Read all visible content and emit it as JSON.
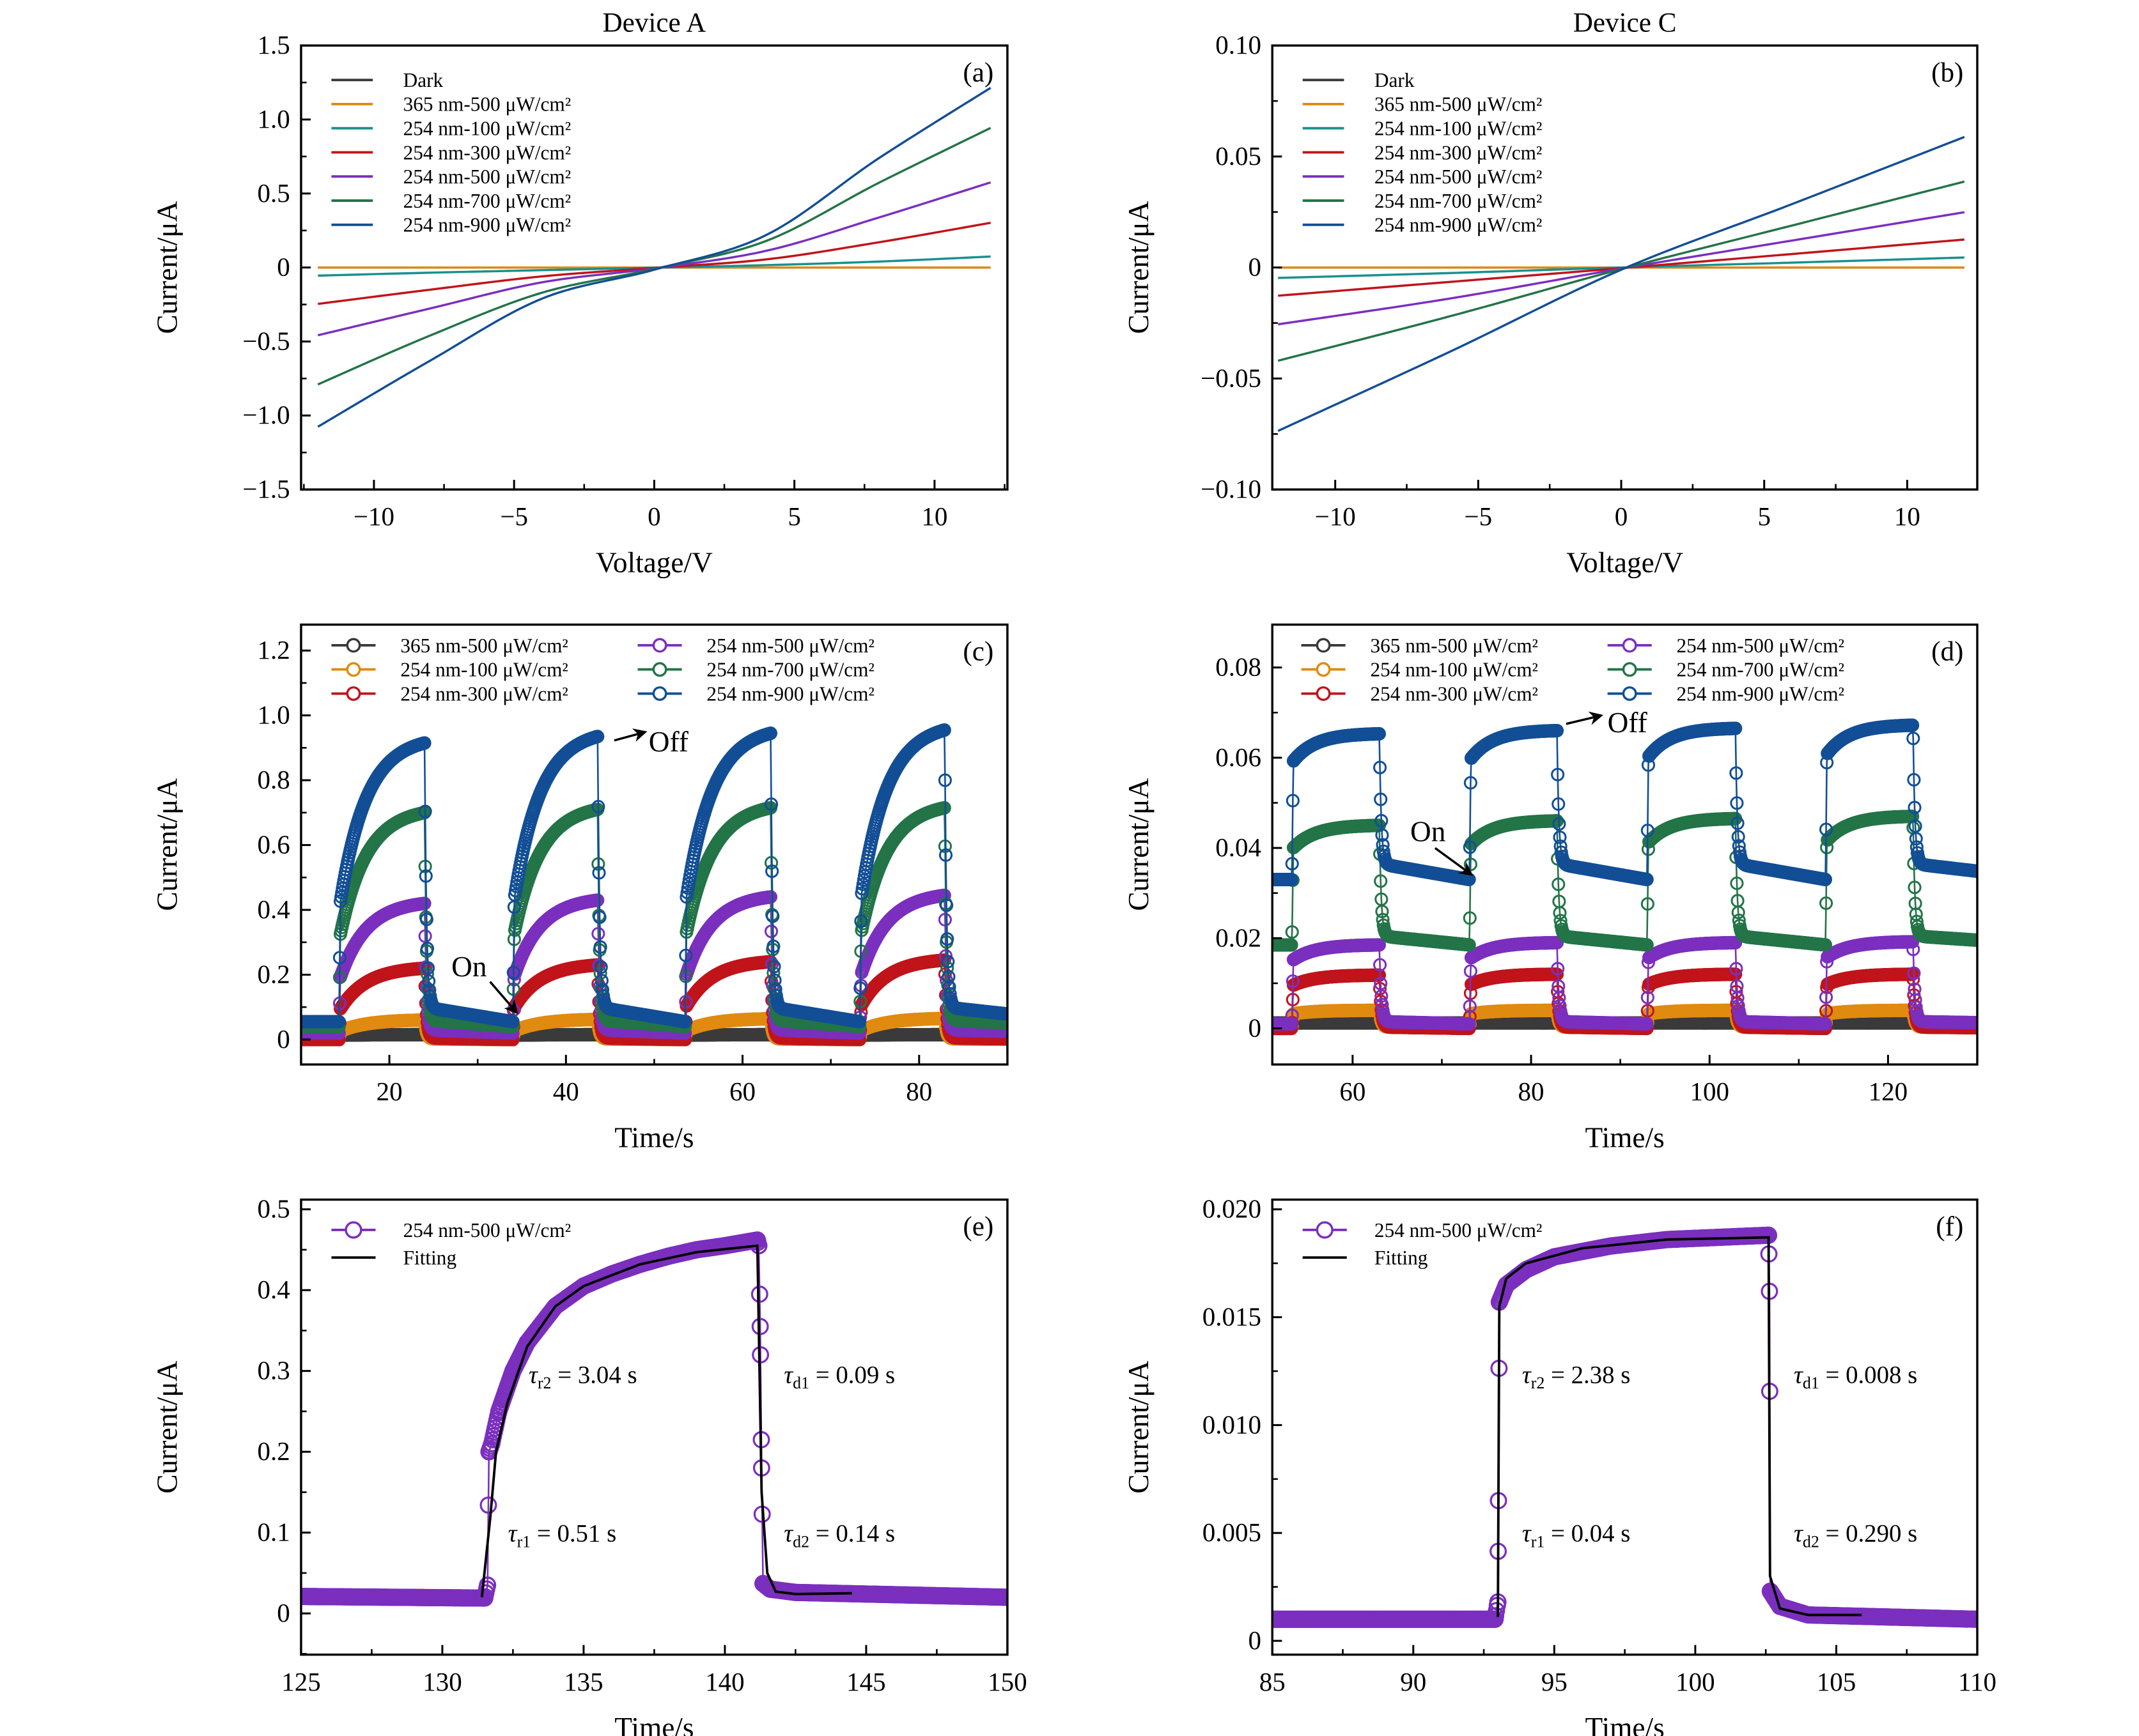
{
  "chart_data": [
    {
      "panel": "(a)",
      "title": "Device A",
      "type": "line",
      "xlabel": "Voltage/V",
      "ylabel": "Current/μA",
      "xlim": [
        -12.6,
        12.6
      ],
      "ylim": [
        -1.5,
        1.5
      ],
      "xticks": [
        -10,
        -5,
        0,
        5,
        10
      ],
      "xticklabels": [
        "−10",
        "−5",
        "0",
        "5",
        "10"
      ],
      "yticks": [
        -1.5,
        -1.0,
        -0.5,
        0,
        0.5,
        1.0,
        1.5
      ],
      "yticklabels": [
        "−1.5",
        "−1.0",
        "−0.5",
        "0",
        "0.5",
        "1.0",
        "1.5"
      ],
      "legend": "top-left",
      "grid": false,
      "x": [
        -12,
        -8,
        -4,
        0,
        4,
        8,
        12
      ],
      "series": [
        {
          "name": "Dark",
          "color": "#3a3a3a",
          "values": [
            0,
            0,
            0,
            0,
            0,
            0,
            0
          ]
        },
        {
          "name": "365 nm-500 μW/cm²",
          "color": "#e08a10",
          "values": [
            0,
            0,
            0,
            0,
            0,
            0,
            0
          ]
        },
        {
          "name": "254 nm-100 μW/cm²",
          "color": "#17918f",
          "values": [
            -0.055,
            -0.035,
            -0.018,
            -0.001,
            0.016,
            0.04,
            0.074
          ]
        },
        {
          "name": "254 nm-300 μW/cm²",
          "color": "#c0141a",
          "values": [
            -0.246,
            -0.15,
            -0.06,
            -0.003,
            0.055,
            0.17,
            0.302
          ]
        },
        {
          "name": "254 nm-500 μW/cm²",
          "color": "#7b2fbe",
          "values": [
            -0.458,
            -0.277,
            -0.1,
            -0.006,
            0.113,
            0.337,
            0.575
          ]
        },
        {
          "name": "254 nm-700 μW/cm²",
          "color": "#237447",
          "values": [
            -0.79,
            -0.46,
            -0.17,
            -0.01,
            0.18,
            0.571,
            0.943
          ]
        },
        {
          "name": "254 nm-900 μW/cm²",
          "color": "#124e96",
          "values": [
            -1.076,
            -0.63,
            -0.21,
            -0.015,
            0.22,
            0.737,
            1.214
          ]
        }
      ]
    },
    {
      "panel": "(b)",
      "title": "Device C",
      "type": "line",
      "xlabel": "Voltage/V",
      "ylabel": "Current/μA",
      "xlim": [
        -12.2,
        12.45
      ],
      "ylim": [
        -0.1,
        0.1
      ],
      "xticks": [
        -10,
        -5,
        0,
        5,
        10
      ],
      "xticklabels": [
        "−10",
        "−5",
        "0",
        "5",
        "10"
      ],
      "yticks": [
        -0.1,
        -0.05,
        0,
        0.05,
        0.1
      ],
      "yticklabels": [
        "−0.10",
        "−0.05",
        "0",
        "0.05",
        "0.10"
      ],
      "legend": "top-left",
      "grid": false,
      "x": [
        -12,
        -6,
        0,
        6,
        12
      ],
      "series": [
        {
          "name": "Dark",
          "color": "#3a3a3a",
          "values": [
            0,
            0,
            0,
            0,
            0
          ]
        },
        {
          "name": "365 nm-500 μW/cm²",
          "color": "#e08a10",
          "values": [
            0,
            0,
            0,
            0,
            0
          ]
        },
        {
          "name": "254 nm-100 μW/cm²",
          "color": "#17918f",
          "values": [
            -0.0047,
            -0.0025,
            0,
            0.0022,
            0.0045
          ]
        },
        {
          "name": "254 nm-300 μW/cm²",
          "color": "#c0141a",
          "values": [
            -0.0127,
            -0.0065,
            -0.0003,
            0.0061,
            0.0126
          ]
        },
        {
          "name": "254 nm-500 μW/cm²",
          "color": "#7b2fbe",
          "values": [
            -0.0256,
            -0.014,
            -0.0005,
            0.0122,
            0.0249
          ]
        },
        {
          "name": "254 nm-700 μW/cm²",
          "color": "#237447",
          "values": [
            -0.042,
            -0.022,
            -0.0007,
            0.019,
            0.0387
          ]
        },
        {
          "name": "254 nm-900 μW/cm²",
          "color": "#124e96",
          "values": [
            -0.0736,
            -0.038,
            -0.001,
            0.0287,
            0.0588
          ]
        }
      ]
    },
    {
      "panel": "(c)",
      "type": "scatter",
      "xlabel": "Time/s",
      "ylabel": "Current/μA",
      "xlim": [
        10,
        90
      ],
      "ylim": [
        -0.077,
        1.28
      ],
      "xticks": [
        20,
        40,
        60,
        80
      ],
      "xticklabels": [
        "20",
        "40",
        "60",
        "80"
      ],
      "yticks": [
        0,
        0.2,
        0.4,
        0.6,
        0.8,
        1.0,
        1.2
      ],
      "yticklabels": [
        "0",
        "0.2",
        "0.4",
        "0.6",
        "0.8",
        "1.0",
        "1.2"
      ],
      "legend": "top, two columns",
      "grid": false,
      "on_times": [
        14.3,
        34.0,
        53.5,
        73.3
      ],
      "off_times": [
        24.0,
        43.6,
        63.2,
        82.9
      ],
      "series": [
        {
          "name": "365 nm-500 μW/cm²",
          "color": "#3a3a3a",
          "off_level_start": 0.012,
          "off_level_end": 0.012,
          "peaks": [
            0.015,
            0.015,
            0.015,
            0.015
          ]
        },
        {
          "name": "254 nm-100 μW/cm²",
          "color": "#e08a10",
          "off_level_start": 0.002,
          "off_level_end": 0.0,
          "peaks": [
            0.06,
            0.062,
            0.064,
            0.065
          ]
        },
        {
          "name": "254 nm-300 μW/cm²",
          "color": "#c0141a",
          "off_level_start": 0.005,
          "off_level_end": 0.0,
          "peaks": [
            0.22,
            0.23,
            0.24,
            0.245
          ]
        },
        {
          "name": "254 nm-500 μW/cm²",
          "color": "#7b2fbe",
          "off_level_start": 0.03,
          "off_level_end": 0.02,
          "peaks": [
            0.42,
            0.43,
            0.44,
            0.445
          ]
        },
        {
          "name": "254 nm-700 μW/cm²",
          "color": "#237447",
          "off_level_start": 0.06,
          "off_level_end": 0.04,
          "peaks": [
            0.7,
            0.71,
            0.715,
            0.715
          ]
        },
        {
          "name": "254 nm-900 μW/cm²",
          "color": "#124e96",
          "off_level_start": 0.1,
          "off_level_end": 0.055,
          "peaks": [
            0.915,
            0.935,
            0.945,
            0.955
          ]
        }
      ],
      "annotations": [
        {
          "text": "On"
        },
        {
          "text": "Off"
        }
      ]
    },
    {
      "panel": "(d)",
      "type": "scatter",
      "xlabel": "Time/s",
      "ylabel": "Current/μA",
      "xlim": [
        51,
        130
      ],
      "ylim": [
        -0.008,
        0.0895
      ],
      "xticks": [
        60,
        80,
        100,
        120
      ],
      "xticklabels": [
        "60",
        "80",
        "100",
        "120"
      ],
      "yticks": [
        0,
        0.02,
        0.04,
        0.06,
        0.08
      ],
      "yticklabels": [
        "0",
        "0.02",
        "0.04",
        "0.06",
        "0.08"
      ],
      "legend": "top, two columns",
      "grid": false,
      "on_times": [
        53.2,
        73.1,
        93.0,
        113.0
      ],
      "off_times": [
        63.0,
        82.9,
        102.9,
        122.8
      ],
      "series": [
        {
          "name": "365 nm-500 μW/cm²",
          "color": "#3a3a3a",
          "off_level_start": 0.0012,
          "off_level_end": 0.0012,
          "peaks": [
            0.0012,
            0.0012,
            0.0012,
            0.0012
          ]
        },
        {
          "name": "254 nm-100 μW/cm²",
          "color": "#e08a10",
          "off_level_start": 0.0003,
          "off_level_end": 0.0,
          "peaks": [
            0.004,
            0.004,
            0.004,
            0.004
          ]
        },
        {
          "name": "254 nm-300 μW/cm²",
          "color": "#c0141a",
          "off_level_start": 0.0003,
          "off_level_end": 0.0,
          "peaks": [
            0.0118,
            0.012,
            0.012,
            0.012
          ]
        },
        {
          "name": "254 nm-500 μW/cm²",
          "color": "#7b2fbe",
          "off_level_start": 0.0015,
          "off_level_end": 0.001,
          "peaks": [
            0.0185,
            0.019,
            0.019,
            0.0192
          ]
        },
        {
          "name": "254 nm-700 μW/cm²",
          "color": "#237447",
          "off_level_start": 0.0205,
          "off_level_end": 0.0185,
          "peaks": [
            0.045,
            0.046,
            0.0465,
            0.047
          ]
        },
        {
          "name": "254 nm-900 μW/cm²",
          "color": "#124e96",
          "off_level_start": 0.0365,
          "off_level_end": 0.033,
          "peaks": [
            0.0653,
            0.066,
            0.0665,
            0.0672
          ]
        }
      ],
      "annotations": [
        {
          "text": "On"
        },
        {
          "text": "Off"
        }
      ]
    },
    {
      "panel": "(e)",
      "type": "scatter",
      "xlabel": "Time/s",
      "ylabel": "Current/μA",
      "xlim": [
        125,
        150
      ],
      "ylim": [
        -0.051,
        0.512
      ],
      "xticks": [
        125,
        130,
        135,
        140,
        145,
        150
      ],
      "xticklabels": [
        "125",
        "130",
        "135",
        "140",
        "145",
        "150"
      ],
      "yticks": [
        0,
        0.1,
        0.2,
        0.3,
        0.4,
        0.5
      ],
      "yticklabels": [
        "0",
        "0.1",
        "0.2",
        "0.3",
        "0.4",
        "0.5"
      ],
      "legend": "top-left",
      "grid": false,
      "series": [
        {
          "name": "254 nm-500 μW/cm²",
          "color": "#7b2fbe",
          "marker": "circle",
          "points": [
            [
              125,
              0.021
            ],
            [
              131.5,
              0.019
            ],
            [
              131.6,
              0.035
            ],
            [
              131.65,
              0.2
            ],
            [
              131.75,
              0.21
            ],
            [
              132,
              0.25
            ],
            [
              132.5,
              0.3
            ],
            [
              133,
              0.335
            ],
            [
              134,
              0.38
            ],
            [
              135,
              0.405
            ],
            [
              136,
              0.42
            ],
            [
              137,
              0.432
            ],
            [
              138,
              0.442
            ],
            [
              139,
              0.45
            ],
            [
              140,
              0.455
            ],
            [
              141.15,
              0.462
            ],
            [
              141.2,
              0.455
            ],
            [
              141.25,
              0.355
            ],
            [
              141.3,
              0.18
            ],
            [
              141.35,
              0.037
            ],
            [
              141.6,
              0.03
            ],
            [
              142.5,
              0.026
            ],
            [
              150,
              0.02
            ]
          ]
        },
        {
          "name": "Fitting",
          "color": "#000000",
          "marker": "none",
          "points": [
            [
              131.4,
              0.02
            ],
            [
              131.7,
              0.12
            ],
            [
              131.9,
              0.2
            ],
            [
              132.3,
              0.26
            ],
            [
              133,
              0.33
            ],
            [
              134,
              0.38
            ],
            [
              135,
              0.405
            ],
            [
              137,
              0.432
            ],
            [
              139,
              0.447
            ],
            [
              141.15,
              0.455
            ],
            [
              141.3,
              0.15
            ],
            [
              141.5,
              0.05
            ],
            [
              141.8,
              0.027
            ],
            [
              142.5,
              0.024
            ],
            [
              144.5,
              0.025
            ]
          ]
        }
      ],
      "tau_symbol": "τ",
      "annotations": [
        {
          "sub": "r2",
          "text": " = 3.04 s"
        },
        {
          "sub": "d1",
          "text": " = 0.09 s"
        },
        {
          "sub": "r1",
          "text": " = 0.51 s"
        },
        {
          "sub": "d2",
          "text": " = 0.14 s"
        }
      ]
    },
    {
      "panel": "(f)",
      "type": "scatter",
      "xlabel": "Time/s",
      "ylabel": "Current/μA",
      "xlim": [
        85,
        110
      ],
      "ylim": [
        -0.00064,
        0.02045
      ],
      "xticks": [
        85,
        90,
        95,
        100,
        105,
        110
      ],
      "xticklabels": [
        "85",
        "90",
        "95",
        "100",
        "105",
        "110"
      ],
      "yticks": [
        0,
        0.005,
        0.01,
        0.015,
        0.02
      ],
      "yticklabels": [
        "0",
        "0.005",
        "0.010",
        "0.015",
        "0.020"
      ],
      "legend": "top-left",
      "grid": false,
      "series": [
        {
          "name": "254 nm-500 μW/cm²",
          "color": "#7b2fbe",
          "marker": "circle",
          "points": [
            [
              85,
              0.001
            ],
            [
              92.9,
              0.001
            ],
            [
              93.0,
              0.0018
            ],
            [
              93.02,
              0.0065
            ],
            [
              93.05,
              0.0157
            ],
            [
              93.3,
              0.0165
            ],
            [
              94,
              0.0172
            ],
            [
              95,
              0.0178
            ],
            [
              97,
              0.0183
            ],
            [
              99,
              0.0186
            ],
            [
              102.6,
              0.0188
            ],
            [
              102.63,
              0.0162
            ],
            [
              102.66,
              0.0023
            ],
            [
              103,
              0.0016
            ],
            [
              104,
              0.0012
            ],
            [
              110,
              0.001
            ]
          ]
        },
        {
          "name": "Fitting",
          "color": "#000000",
          "marker": "none",
          "points": [
            [
              93.0,
              0.0011
            ],
            [
              93.05,
              0.0155
            ],
            [
              93.3,
              0.0168
            ],
            [
              94,
              0.0175
            ],
            [
              96,
              0.0182
            ],
            [
              99,
              0.0186
            ],
            [
              102.6,
              0.0187
            ],
            [
              102.65,
              0.003
            ],
            [
              103,
              0.0015
            ],
            [
              104,
              0.0012
            ],
            [
              105.9,
              0.0012
            ]
          ]
        }
      ],
      "tau_symbol": "τ",
      "annotations": [
        {
          "sub": "r2",
          "text": " = 2.38 s"
        },
        {
          "sub": "d1",
          "text": " = 0.008 s"
        },
        {
          "sub": "r1",
          "text": " = 0.04 s"
        },
        {
          "sub": "d2",
          "text": " = 0.290 s"
        }
      ]
    }
  ]
}
